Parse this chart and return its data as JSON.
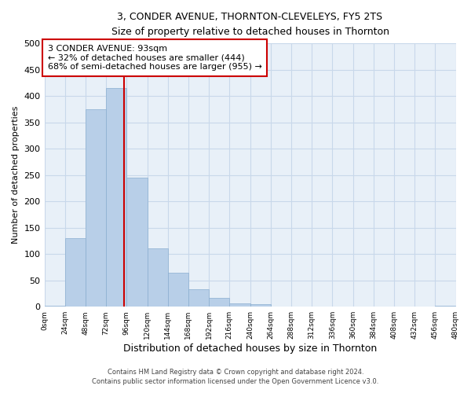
{
  "title": "3, CONDER AVENUE, THORNTON-CLEVELEYS, FY5 2TS",
  "subtitle": "Size of property relative to detached houses in Thornton",
  "xlabel": "Distribution of detached houses by size in Thornton",
  "ylabel": "Number of detached properties",
  "bar_edges": [
    0,
    24,
    48,
    72,
    96,
    120,
    144,
    168,
    192,
    216,
    240,
    264,
    288,
    312,
    336,
    360,
    384,
    408,
    432,
    456,
    480
  ],
  "bar_heights": [
    2,
    130,
    375,
    415,
    245,
    110,
    65,
    33,
    16,
    7,
    5,
    0,
    0,
    0,
    0,
    0,
    0,
    0,
    0,
    2
  ],
  "bar_color": "#b8cfe8",
  "bar_edgecolor": "#8aaed0",
  "ylim": [
    0,
    500
  ],
  "yticks": [
    0,
    50,
    100,
    150,
    200,
    250,
    300,
    350,
    400,
    450,
    500
  ],
  "xtick_labels": [
    "0sqm",
    "24sqm",
    "48sqm",
    "72sqm",
    "96sqm",
    "120sqm",
    "144sqm",
    "168sqm",
    "192sqm",
    "216sqm",
    "240sqm",
    "264sqm",
    "288sqm",
    "312sqm",
    "336sqm",
    "360sqm",
    "384sqm",
    "408sqm",
    "432sqm",
    "456sqm",
    "480sqm"
  ],
  "property_size": 93,
  "vline_color": "#cc0000",
  "annotation_title": "3 CONDER AVENUE: 93sqm",
  "annotation_line1": "← 32% of detached houses are smaller (444)",
  "annotation_line2": "68% of semi-detached houses are larger (955) →",
  "annotation_box_edgecolor": "#cc0000",
  "annotation_box_facecolor": "#ffffff",
  "footer_line1": "Contains HM Land Registry data © Crown copyright and database right 2024.",
  "footer_line2": "Contains public sector information licensed under the Open Government Licence v3.0.",
  "grid_color": "#c8d8ea",
  "background_color": "#e8f0f8"
}
